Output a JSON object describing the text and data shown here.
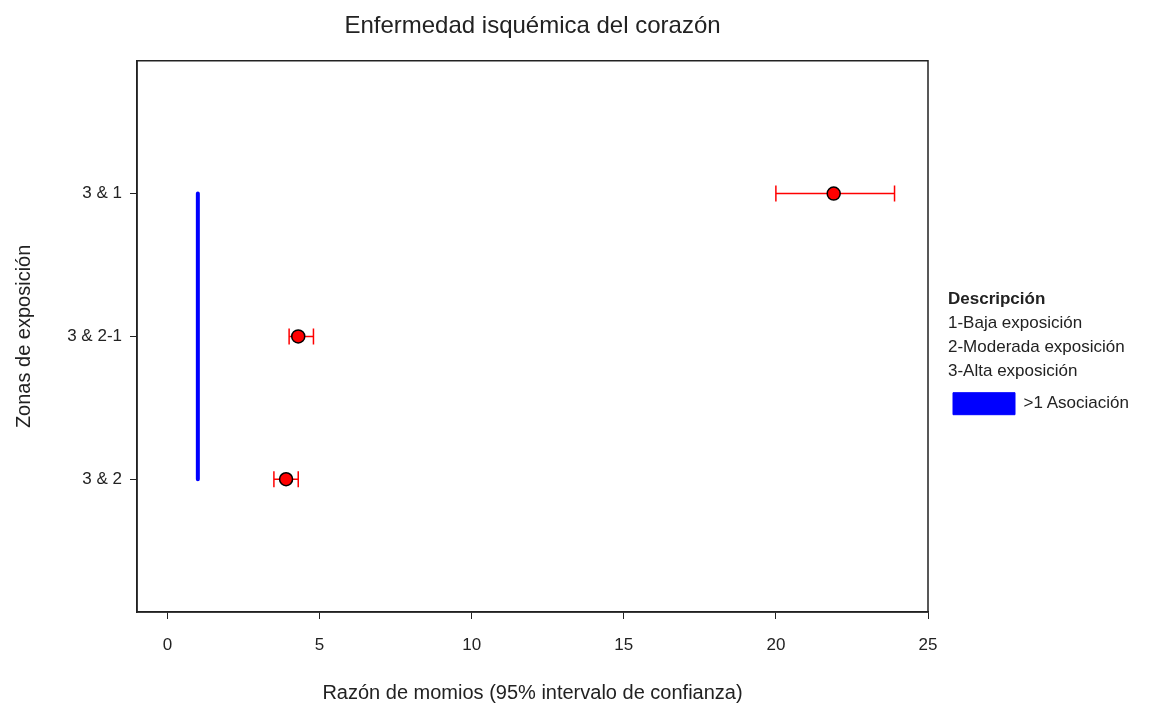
{
  "chart_data": {
    "type": "scatter",
    "orientation": "horizontal",
    "title": "Enfermedad isquémica del corazón",
    "xlabel": "Razón de momios (95% intervalo de confianza)",
    "ylabel": "Zonas de exposición",
    "categories": [
      "3 & 1",
      "3 & 2-1",
      "3 & 2"
    ],
    "series": [
      {
        "color": "#ff0000",
        "values": [
          21.9,
          4.3,
          3.9
        ],
        "errors": [
          [
            20.0,
            23.9
          ],
          [
            4.0,
            4.8
          ],
          [
            3.5,
            4.3
          ]
        ]
      },
      {
        "type": "line",
        "name": ">1 Asociación",
        "color": "#0000ff",
        "values": [
          1,
          1,
          1
        ],
        "marker": "none"
      }
    ],
    "xlim": [
      -1,
      25
    ],
    "xticks": [
      0,
      5,
      10,
      15,
      20,
      25
    ],
    "marker": "circle",
    "legend": "right",
    "legend_title": "Descripción",
    "annotations": [
      "1-Baja exposición",
      "2-Moderada exposición",
      "3-Alta exposición"
    ]
  }
}
